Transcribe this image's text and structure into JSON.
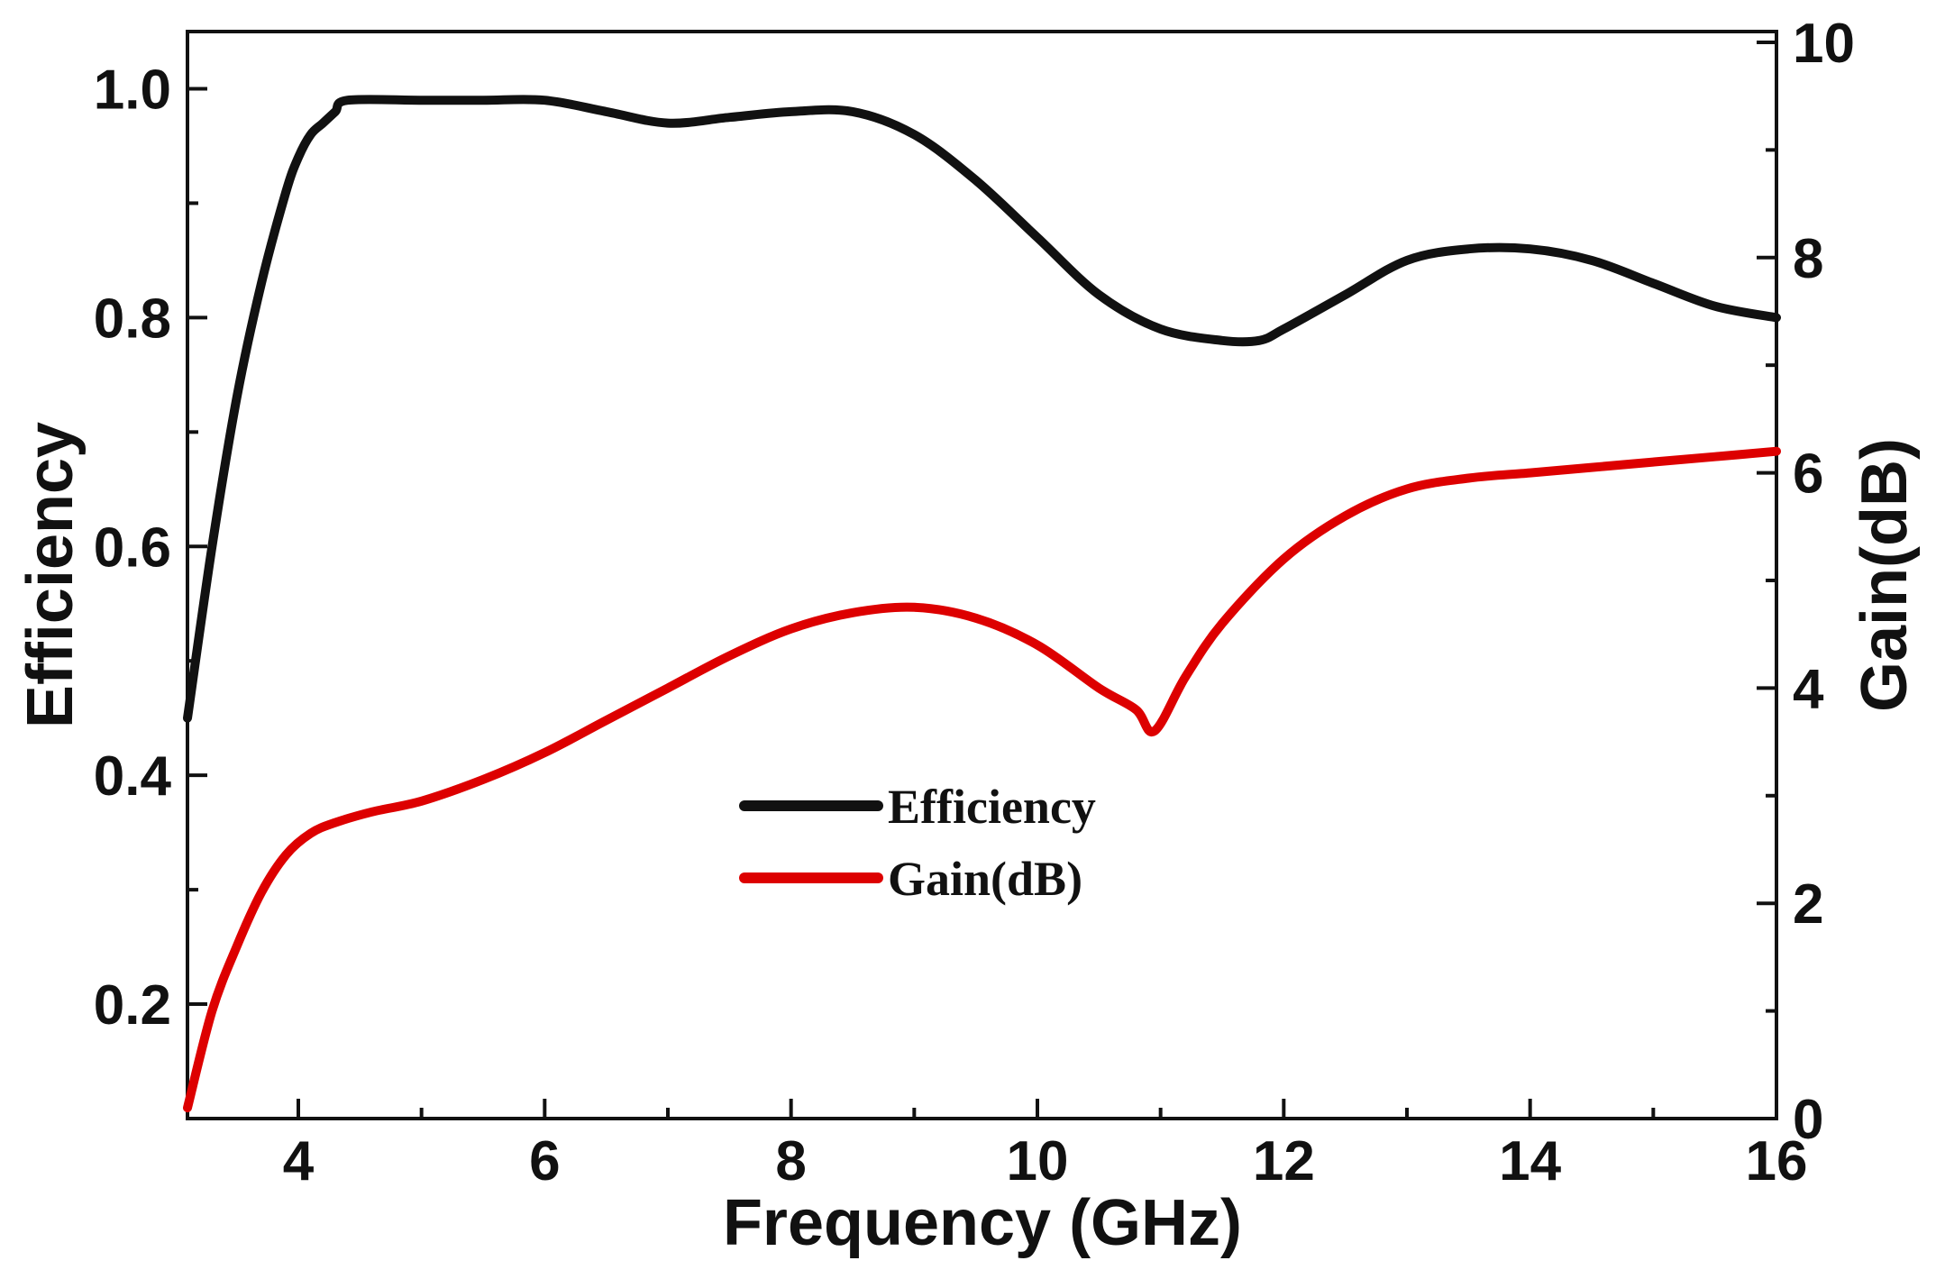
{
  "chart_data": {
    "type": "line",
    "title": "",
    "xlabel": "Frequency (GHz)",
    "ylabel_left": "Efficiency",
    "ylabel_right": "Gain(dB)",
    "xlim": [
      3.1,
      16
    ],
    "ylim_left": [
      0.1,
      1.05
    ],
    "ylim_right": [
      0,
      10.1
    ],
    "xticks": [
      4,
      6,
      8,
      10,
      12,
      14,
      16
    ],
    "xtick_labels": [
      "4",
      "6",
      "8",
      "10",
      "12",
      "14",
      "16"
    ],
    "yticks_left": [
      0.2,
      0.4,
      0.6,
      0.8,
      1.0
    ],
    "ytick_labels_left": [
      "0.2",
      "0.4",
      "0.6",
      "0.8",
      "1.0"
    ],
    "yticks_right": [
      0,
      2,
      4,
      6,
      8,
      10
    ],
    "ytick_labels_right": [
      "0",
      "2",
      "4",
      "6",
      "8",
      "10"
    ],
    "grid": false,
    "legend_position": "center",
    "series": [
      {
        "name": "Efficiency",
        "axis": "left",
        "color": "#111111",
        "x": [
          3.1,
          3.3,
          3.5,
          3.7,
          3.9,
          4.0,
          4.1,
          4.2,
          4.3,
          4.4,
          5.0,
          5.5,
          6.0,
          6.5,
          7.0,
          7.5,
          8.0,
          8.5,
          9.0,
          9.5,
          10.0,
          10.5,
          11.0,
          11.5,
          11.8,
          12.0,
          12.5,
          13.0,
          13.5,
          14.0,
          14.5,
          15.0,
          15.5,
          16.0
        ],
        "y": [
          0.45,
          0.6,
          0.73,
          0.83,
          0.91,
          0.94,
          0.96,
          0.97,
          0.98,
          0.99,
          0.99,
          0.99,
          0.99,
          0.98,
          0.97,
          0.975,
          0.98,
          0.98,
          0.96,
          0.92,
          0.87,
          0.82,
          0.79,
          0.78,
          0.78,
          0.79,
          0.82,
          0.85,
          0.86,
          0.86,
          0.85,
          0.83,
          0.81,
          0.8
        ]
      },
      {
        "name": "Gain(dB)",
        "axis": "right",
        "color": "#dd0000",
        "x": [
          3.1,
          3.3,
          3.5,
          3.7,
          3.9,
          4.1,
          4.3,
          4.6,
          5.0,
          5.5,
          6.0,
          6.5,
          7.0,
          7.5,
          8.0,
          8.5,
          9.0,
          9.5,
          10.0,
          10.5,
          10.8,
          10.95,
          11.2,
          11.5,
          12.0,
          12.5,
          13.0,
          13.5,
          14.0,
          14.5,
          15.0,
          15.5,
          16.0
        ],
        "y": [
          0.1,
          1.0,
          1.6,
          2.1,
          2.45,
          2.65,
          2.75,
          2.85,
          2.95,
          3.15,
          3.4,
          3.7,
          4.0,
          4.3,
          4.55,
          4.7,
          4.75,
          4.65,
          4.4,
          4.0,
          3.8,
          3.6,
          4.1,
          4.6,
          5.2,
          5.6,
          5.85,
          5.95,
          6.0,
          6.05,
          6.1,
          6.15,
          6.2
        ]
      }
    ]
  }
}
